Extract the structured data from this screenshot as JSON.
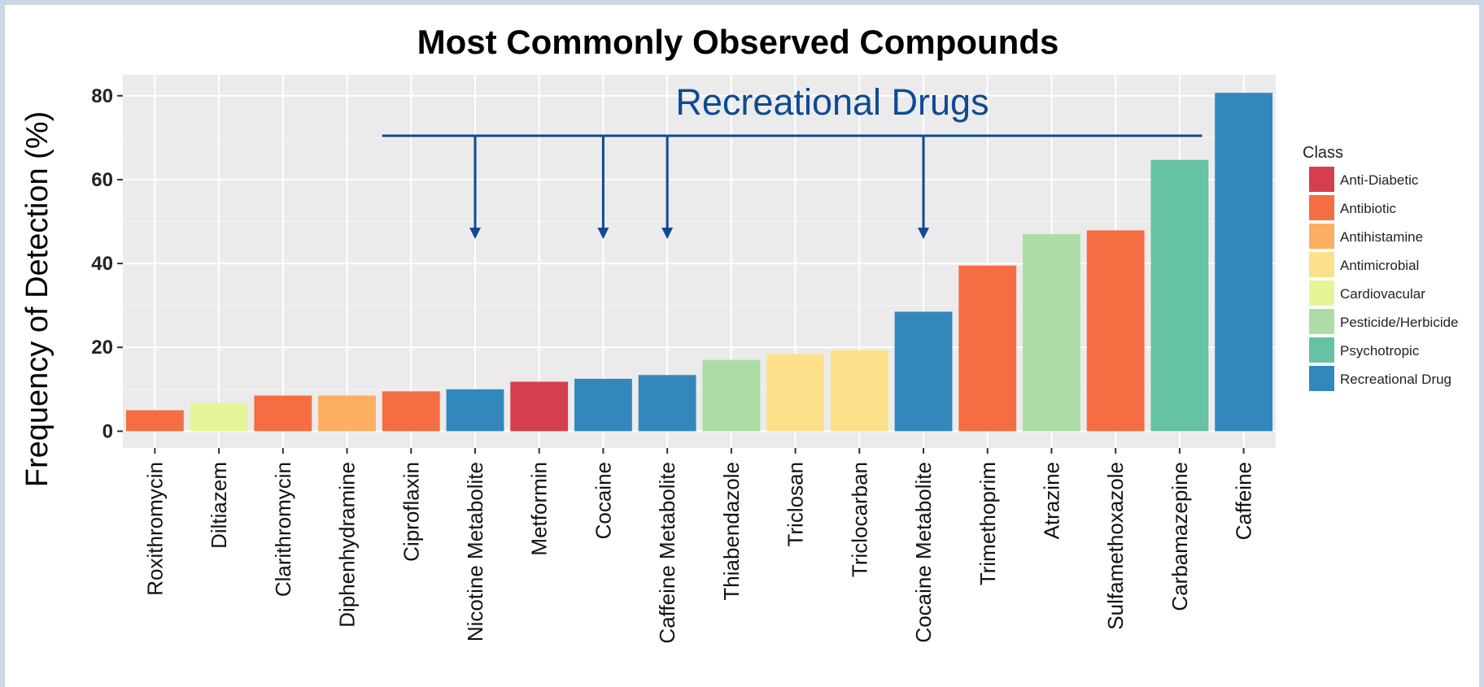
{
  "chart_data": {
    "type": "bar",
    "title": "Most Commonly Observed Compounds",
    "ylabel": "Frequency of Detection (%)",
    "xlabel": "",
    "ylim": [
      -4,
      85
    ],
    "yticks": [
      0,
      20,
      40,
      60,
      80
    ],
    "grid": true,
    "categories": [
      "Roxithromycin",
      "Diltiazem",
      "Clarithromycin",
      "Diphenhydramine",
      "Ciproflaxin",
      "Nicotine Metabolite",
      "Metformin",
      "Cocaine",
      "Caffeine Metabolite",
      "Thiabendazole",
      "Triclosan",
      "Triclocarban",
      "Cocaine Metabolite",
      "Trimethoprim",
      "Atrazine",
      "Sulfamethoxazole",
      "Carbamazepine",
      "Caffeine"
    ],
    "values": [
      5,
      6.7,
      8.5,
      8.5,
      9.5,
      10,
      11.8,
      12.5,
      13.4,
      17,
      18.4,
      19.3,
      28.5,
      39.5,
      47,
      47.9,
      64.7,
      80.7
    ],
    "classes": [
      "Antibiotic",
      "Cardiovacular",
      "Antibiotic",
      "Antihistamine",
      "Antibiotic",
      "Recreational Drug",
      "Anti-Diabetic",
      "Recreational Drug",
      "Recreational Drug",
      "Pesticide/Herbicide",
      "Antimicrobial",
      "Antimicrobial",
      "Recreational Drug",
      "Antibiotic",
      "Pesticide/Herbicide",
      "Antibiotic",
      "Psychotropic",
      "Recreational Drug"
    ],
    "legend": {
      "title": "Class",
      "position": "right",
      "entries": [
        {
          "name": "Anti-Diabetic",
          "color": "#d53e4f"
        },
        {
          "name": "Antibiotic",
          "color": "#f46d43"
        },
        {
          "name": "Antihistamine",
          "color": "#fdae61"
        },
        {
          "name": "Antimicrobial",
          "color": "#fee08b"
        },
        {
          "name": "Cardiovacular",
          "color": "#e6f598"
        },
        {
          "name": "Pesticide/Herbicide",
          "color": "#abdda4"
        },
        {
          "name": "Psychotropic",
          "color": "#66c2a5"
        },
        {
          "name": "Recreational Drug",
          "color": "#3288bd"
        }
      ]
    },
    "annotation": {
      "text": "Recreational Drugs",
      "color": "#0d4a94",
      "bracket_from": "Ciproflaxin",
      "bracket_to": "Carbamazepine",
      "arrow_targets": [
        "Nicotine Metabolite",
        "Cocaine",
        "Caffeine Metabolite",
        "Cocaine Metabolite"
      ]
    }
  }
}
